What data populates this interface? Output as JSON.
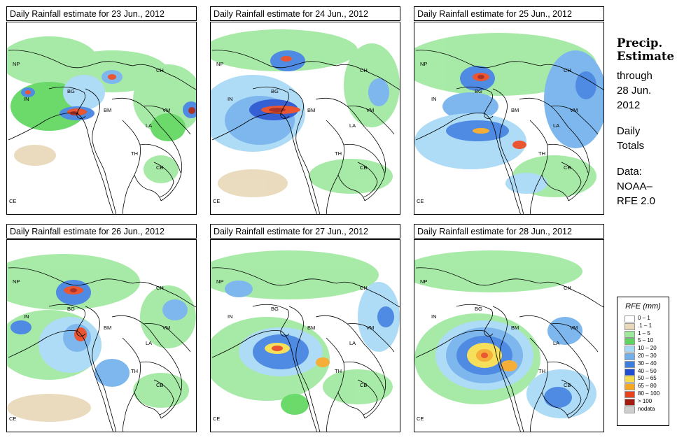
{
  "figure_title": {
    "line1": "Precip.",
    "line2": "Estimate"
  },
  "notes": {
    "through": "through",
    "date": "28 Jun.",
    "year": "2012",
    "daily": "Daily",
    "totals": "Totals",
    "data_label": "Data:",
    "source": "NOAA–",
    "product": "RFE 2.0"
  },
  "panels": [
    {
      "title": "Daily Rainfall estimate for  23 Jun., 2012"
    },
    {
      "title": "Daily Rainfall estimate for  24 Jun., 2012"
    },
    {
      "title": "Daily Rainfall estimate for  25 Jun., 2012"
    },
    {
      "title": "Daily Rainfall estimate for  26 Jun., 2012"
    },
    {
      "title": "Daily Rainfall estimate for  27 Jun., 2012"
    },
    {
      "title": "Daily Rainfall estimate for  28 Jun., 2012"
    }
  ],
  "map_labels": {
    "np": "NP",
    "in": "IN",
    "bg": "BG",
    "ch": "CH",
    "bm": "BM",
    "vm": "VM",
    "la": "LA",
    "th": "TH",
    "cb": "CB",
    "ce": "CE"
  },
  "legend": {
    "title": "RFE (mm)",
    "classes": [
      {
        "label": "0 – 1",
        "color": "#ffffff"
      },
      {
        "label": ".1 – 1",
        "color": "#e8d8b8"
      },
      {
        "label": "1 – 5",
        "color": "#9ee89e"
      },
      {
        "label": "5 – 10",
        "color": "#5cd65c"
      },
      {
        "label": "10 – 20",
        "color": "#a6d8f5"
      },
      {
        "label": "20 – 30",
        "color": "#6fb0ec"
      },
      {
        "label": "30 – 40",
        "color": "#3c7fe0"
      },
      {
        "label": "40 – 50",
        "color": "#1f4fd0"
      },
      {
        "label": "50 – 65",
        "color": "#f5dc4a"
      },
      {
        "label": "65 – 80",
        "color": "#f5a623"
      },
      {
        "label": "80 – 100",
        "color": "#e8431c"
      },
      {
        "label": "> 100",
        "color": "#a21c10"
      },
      {
        "label": "nodata",
        "color": "#cfcfcf"
      }
    ]
  },
  "colors": {
    "land_dry": "#ffffff",
    "light": "#e8d8b8",
    "green": "#9ee89e",
    "green2": "#5cd65c",
    "blue1": "#a6d8f5",
    "blue2": "#6fb0ec",
    "blue3": "#3c7fe0",
    "blue4": "#1f4fd0",
    "yellow": "#f5dc4a",
    "orange": "#f5a623",
    "red": "#e8431c",
    "darkred": "#a21c10"
  }
}
